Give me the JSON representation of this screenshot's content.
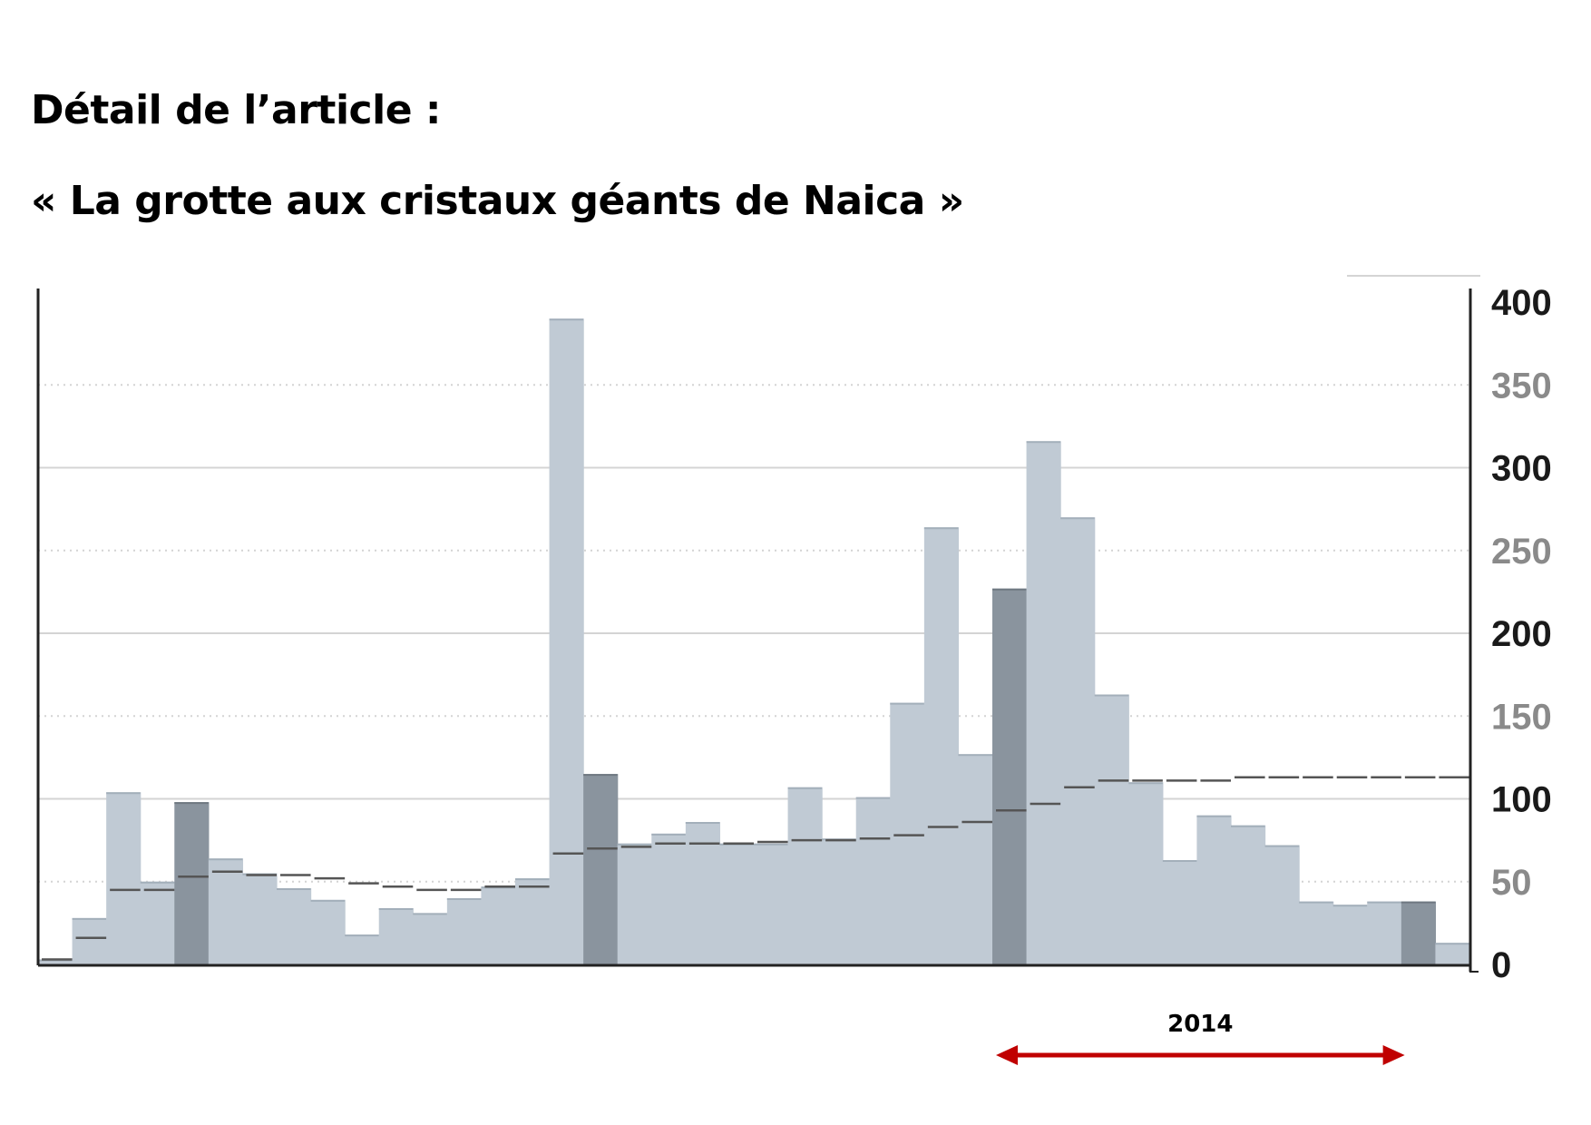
{
  "header": {
    "line1": "Détail de l’article :",
    "line2": "« La grotte aux cristaux géants de Naica »"
  },
  "colors": {
    "light_bar": "#c0cad4",
    "dark_bar": "#8a949e",
    "average_line": "#555555",
    "grid": "#d4d4d4",
    "axis": "#222222",
    "arrow": "#c00000"
  },
  "chart_data": {
    "type": "bar",
    "title": "",
    "xlabel": "",
    "ylabel": "",
    "ylim": [
      0,
      400
    ],
    "y_axis_position": "right",
    "grid": true,
    "gridlines_solid": [
      100,
      200,
      300
    ],
    "gridlines_dotted": [
      50,
      150,
      250,
      350
    ],
    "yticks": [
      {
        "value": 400,
        "label": "400",
        "emphasis": "strong"
      },
      {
        "value": 350,
        "label": "350",
        "emphasis": "light"
      },
      {
        "value": 300,
        "label": "300",
        "emphasis": "strong"
      },
      {
        "value": 250,
        "label": "250",
        "emphasis": "light"
      },
      {
        "value": 200,
        "label": "200",
        "emphasis": "strong"
      },
      {
        "value": 150,
        "label": "150",
        "emphasis": "light"
      },
      {
        "value": 100,
        "label": "100",
        "emphasis": "strong"
      },
      {
        "value": 50,
        "label": "50",
        "emphasis": "light"
      },
      {
        "value": 0,
        "label": "0",
        "emphasis": "strong"
      }
    ],
    "values": [
      3,
      28,
      104,
      50,
      98,
      64,
      55,
      46,
      39,
      18,
      34,
      31,
      40,
      47,
      52,
      390,
      115,
      73,
      79,
      86,
      73,
      73,
      107,
      76,
      101,
      158,
      264,
      127,
      227,
      316,
      270,
      163,
      110,
      63,
      90,
      84,
      72,
      38,
      36,
      38,
      38,
      13
    ],
    "highlighted_indices": [
      4,
      16,
      28,
      40
    ],
    "average": [
      3,
      16,
      45,
      45,
      53,
      56,
      54,
      54,
      52,
      49,
      47,
      45,
      45,
      47,
      47,
      67,
      70,
      71,
      73,
      73,
      73,
      74,
      75,
      75,
      76,
      78,
      83,
      86,
      93,
      97,
      107,
      111,
      111,
      111,
      111,
      113,
      113,
      113,
      113,
      113,
      113,
      113
    ],
    "annotation": {
      "label": "2014",
      "from_index": 28,
      "to_index": 40
    }
  }
}
